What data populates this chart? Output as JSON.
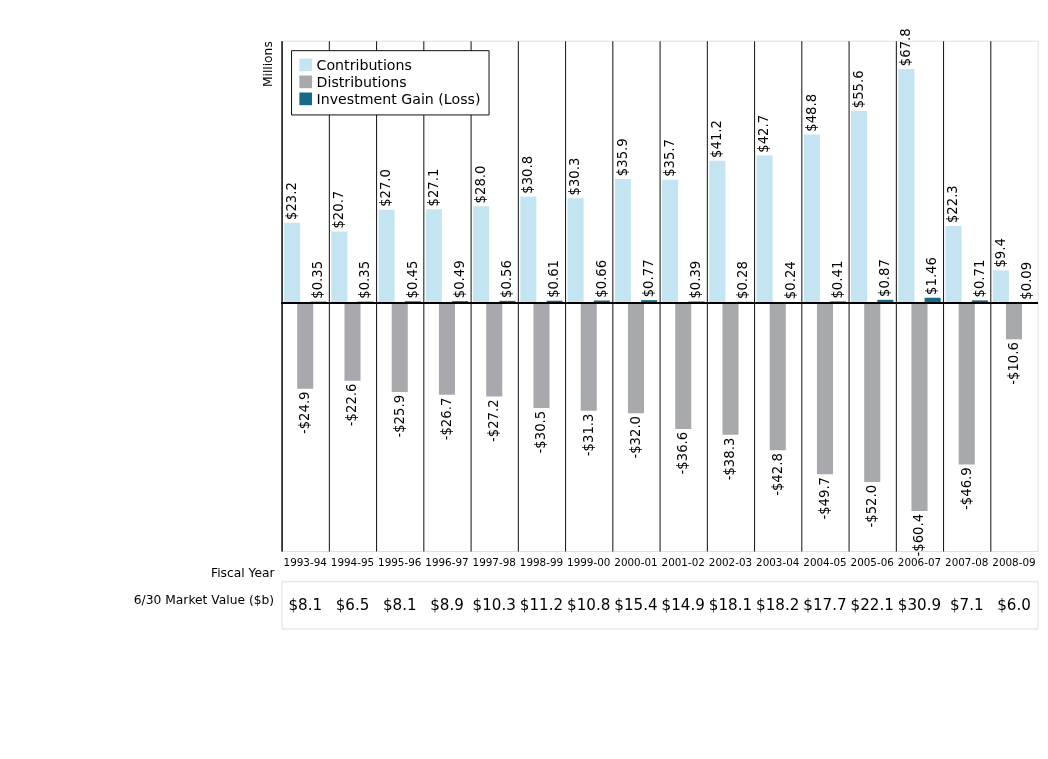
{
  "chart_data": {
    "type": "bar",
    "ylabel": "Millions",
    "xlabel": "Fiscal Year",
    "categories": [
      "1993-94",
      "1994-95",
      "1995-96",
      "1996-97",
      "1997-98",
      "1998-99",
      "1999-00",
      "2000-01",
      "2001-02",
      "2002-03",
      "2003-04",
      "2004-05",
      "2005-06",
      "2006-07",
      "2007-08",
      "2008-09"
    ],
    "series": [
      {
        "name": "Contributions",
        "color": "#c5e4f1",
        "values": [
          23.2,
          20.7,
          27.0,
          27.1,
          28.0,
          30.8,
          30.3,
          35.9,
          35.7,
          41.2,
          42.7,
          48.8,
          55.6,
          67.8,
          22.3,
          9.4
        ],
        "value_labels": [
          "$23.2",
          "$20.7",
          "$27.0",
          "$27.1",
          "$28.0",
          "$30.8",
          "$30.3",
          "$35.9",
          "$35.7",
          "$41.2",
          "$42.7",
          "$48.8",
          "$55.6",
          "$67.8",
          "$22.3",
          "$9.4"
        ]
      },
      {
        "name": "Distributions",
        "color": "#a7a9ac",
        "values": [
          -24.9,
          -22.6,
          -25.9,
          -26.7,
          -27.2,
          -30.5,
          -31.3,
          -32.0,
          -36.6,
          -38.3,
          -42.8,
          -49.7,
          -52.0,
          -60.4,
          -46.9,
          -10.6
        ],
        "value_labels": [
          "-$24.9",
          "-$22.6",
          "-$25.9",
          "-$26.7",
          "-$27.2",
          "-$30.5",
          "-$31.3",
          "-$32.0",
          "-$36.6",
          "-$38.3",
          "-$42.8",
          "-$49.7",
          "-$52.0",
          "-$60.4",
          "-$46.9",
          "-$10.6"
        ]
      },
      {
        "name": "Investment Gain (Loss)",
        "color": "#17698a",
        "values": [
          0.35,
          0.35,
          0.45,
          0.49,
          0.56,
          0.61,
          0.66,
          0.77,
          0.39,
          0.28,
          0.24,
          0.41,
          0.87,
          1.46,
          0.71,
          0.09
        ],
        "value_labels": [
          "$0.35",
          "$0.35",
          "$0.45",
          "$0.49",
          "$0.56",
          "$0.61",
          "$0.66",
          "$0.77",
          "$0.39",
          "$0.28",
          "$0.24",
          "$0.41",
          "$0.87",
          "$1.46",
          "$0.71",
          "$0.09"
        ]
      }
    ],
    "ylim": [
      -72,
      76
    ],
    "tick_labels": "x",
    "grid": "x",
    "legend": "top left",
    "annotations": [
      "6/30 Market Value ($b)",
      "$8.1",
      "$6.5",
      "$8.1",
      "$8.9",
      "$10.3",
      "$11.2",
      "$10.8",
      "$15.4",
      "$14.9",
      "$18.1",
      "$18.2",
      "$17.7",
      "$22.1",
      "$30.9",
      "$7.1",
      "$6.0"
    ]
  }
}
